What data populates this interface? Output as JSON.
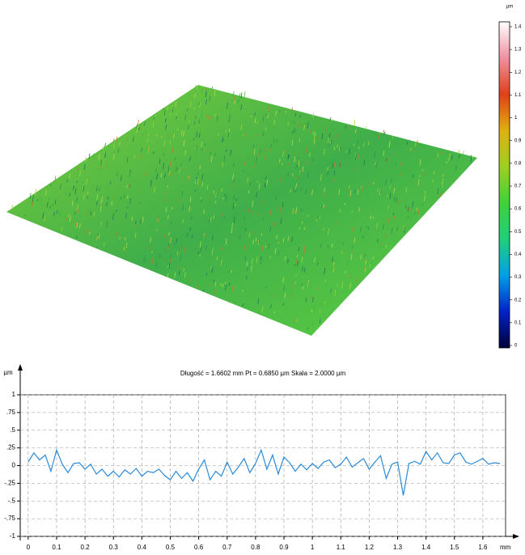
{
  "chart_data": [
    {
      "type": "colorbar",
      "unit": "µm",
      "ylim": [
        0,
        1.4
      ],
      "yticks": [
        0,
        0.1,
        0.2,
        0.3,
        0.4,
        0.5,
        0.6,
        0.7,
        0.8,
        0.9,
        1,
        1.1,
        1.2,
        1.3,
        1.4
      ],
      "colors": [
        "#00003a",
        "#0022c8",
        "#00a0e8",
        "#1fd07a",
        "#3ed23a",
        "#9ed020",
        "#e0b010",
        "#e04018",
        "#f090a0",
        "#ffffff"
      ]
    },
    {
      "type": "line",
      "title": "Długość = 1.6602 mm  Pt = 0.6850 µm  Skala = 2.0000 µm",
      "y_label": "µm",
      "x_label": "mm",
      "color": "#2a8ad8",
      "grid": true,
      "xlim": [
        -0.028,
        1.68
      ],
      "ylim": [
        -1,
        1
      ],
      "xticks": [
        0,
        0.1,
        0.2,
        0.3,
        0.4,
        0.5,
        0.6,
        0.7,
        0.8,
        0.9,
        1,
        1.1,
        1.2,
        1.3,
        1.4,
        1.5,
        1.6
      ],
      "yticks": [
        {
          "value": -1,
          "label": "-1"
        },
        {
          "value": -0.75,
          "label": "-.75"
        },
        {
          "value": -0.5,
          "label": "-.5"
        },
        {
          "value": -0.25,
          "label": "-.25"
        },
        0,
        {
          "value": 0.25,
          "label": ".25"
        },
        {
          "value": 0.5,
          "label": ".5"
        },
        {
          "value": 0.75,
          "label": ".75"
        },
        1
      ],
      "x": [
        0,
        0.02,
        0.04,
        0.06,
        0.08,
        0.1,
        0.12,
        0.14,
        0.16,
        0.18,
        0.2,
        0.22,
        0.24,
        0.26,
        0.28,
        0.3,
        0.32,
        0.34,
        0.36,
        0.38,
        0.4,
        0.42,
        0.44,
        0.46,
        0.48,
        0.5,
        0.52,
        0.54,
        0.56,
        0.58,
        0.6,
        0.62,
        0.64,
        0.66,
        0.68,
        0.7,
        0.72,
        0.74,
        0.76,
        0.78,
        0.8,
        0.82,
        0.84,
        0.86,
        0.88,
        0.9,
        0.92,
        0.94,
        0.96,
        0.98,
        1,
        1.02,
        1.04,
        1.06,
        1.08,
        1.1,
        1.12,
        1.14,
        1.16,
        1.18,
        1.2,
        1.22,
        1.24,
        1.26,
        1.28,
        1.3,
        1.32,
        1.34,
        1.36,
        1.38,
        1.4,
        1.42,
        1.44,
        1.46,
        1.48,
        1.5,
        1.52,
        1.54,
        1.56,
        1.58,
        1.6,
        1.62,
        1.64,
        1.66
      ],
      "values": [
        0.05,
        0.18,
        0.08,
        0.15,
        -0.08,
        0.22,
        0.02,
        -0.1,
        0.03,
        0.04,
        -0.05,
        0.02,
        -0.12,
        -0.05,
        -0.15,
        -0.08,
        -0.16,
        -0.06,
        -0.12,
        -0.04,
        -0.15,
        -0.08,
        -0.1,
        -0.05,
        -0.14,
        -0.2,
        -0.08,
        -0.18,
        -0.1,
        -0.22,
        -0.05,
        0.08,
        -0.2,
        -0.08,
        -0.15,
        0.05,
        -0.12,
        -0.02,
        0.1,
        -0.1,
        0.03,
        0.22,
        -0.05,
        0.15,
        -0.12,
        0.12,
        0.04,
        -0.08,
        0.02,
        -0.06,
        0.03,
        -0.04,
        0.05,
        0.08,
        -0.03,
        0.02,
        0.12,
        -0.02,
        0.04,
        0.1,
        -0.05,
        0.05,
        0.14,
        -0.18,
        0.02,
        0.05,
        -0.42,
        0.03,
        0.06,
        0.02,
        0.2,
        0.08,
        0.18,
        0.04,
        0.03,
        0.15,
        0.18,
        0.05,
        0.02,
        0.06,
        0.1,
        0.02,
        0.04,
        0.03
      ]
    }
  ]
}
